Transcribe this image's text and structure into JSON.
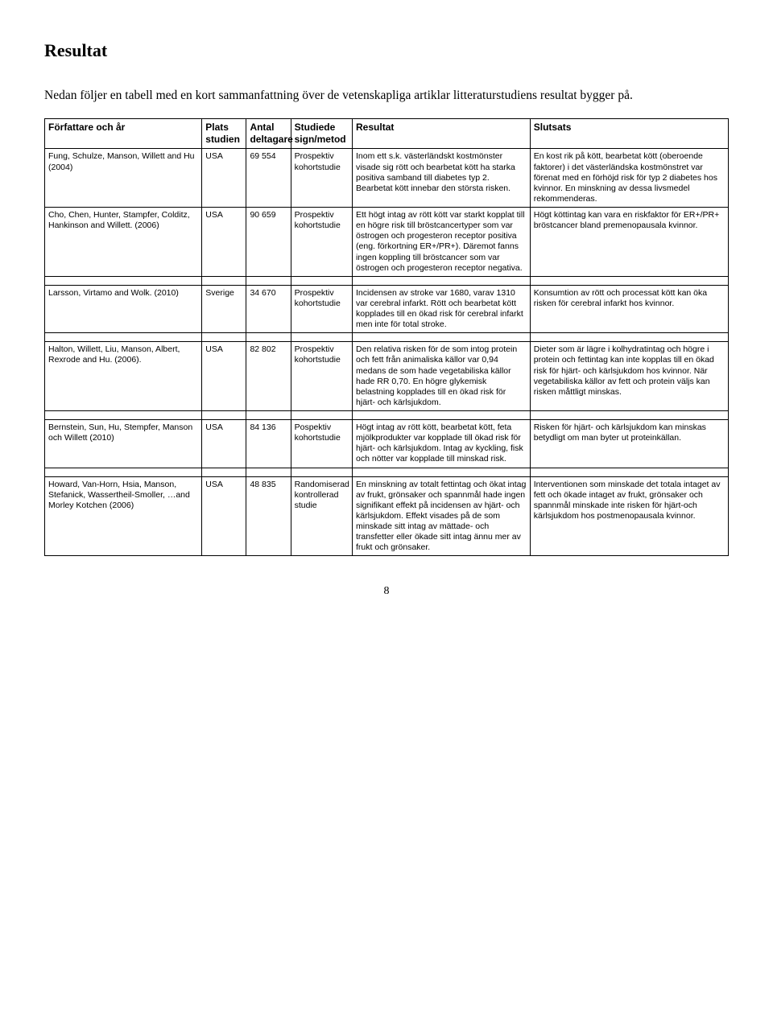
{
  "title": "Resultat",
  "intro": "Nedan följer en tabell med en kort sammanfattning över de vetenskapliga artiklar litteraturstudiens resultat bygger på.",
  "headers": {
    "author": "Författare och år",
    "place": "Plats studien",
    "count": "Antal deltagare",
    "design": "Studiede sign/metod",
    "result": "Resultat",
    "conclusion": "Slutsats"
  },
  "rows": [
    {
      "author": "Fung, Schulze, Manson, Willett and Hu (2004)",
      "place": "USA",
      "count": "69 554",
      "design": "Prospektiv kohortstudie",
      "result": "Inom ett s.k. västerländskt kostmönster visade sig rött och bearbetat kött ha starka positiva samband till diabetes typ 2. Bearbetat kött innebar den största risken.",
      "conclusion": "En kost rik på kött, bearbetat kött (oberoende faktorer) i det västerländska kostmönstret var förenat med en förhöjd risk för typ 2 diabetes hos kvinnor. En minskning av dessa livsmedel rekommenderas."
    },
    {
      "author": "Cho, Chen, Hunter, Stampfer, Colditz, Hankinson and Willett. (2006)",
      "place": "USA",
      "count": "90 659",
      "design": "Prospektiv kohortstudie",
      "result": "Ett högt intag av rött kött var starkt kopplat till en högre risk till bröstcancertyper som var östrogen och progesteron receptor positiva (eng. förkortning ER+/PR+). Däremot fanns ingen koppling till bröstcancer som var östrogen och progesteron receptor negativa.",
      "conclusion": "Högt köttintag kan vara en riskfaktor för ER+/PR+ bröstcancer bland premenopausala kvinnor."
    },
    {
      "author": "Larsson, Virtamo and Wolk. (2010)",
      "place": "Sverige",
      "count": "34 670",
      "design": "Prospektiv kohortstudie",
      "result": "Incidensen av stroke var 1680, varav 1310 var cerebral infarkt. Rött och bearbetat kött kopplades till en ökad risk för cerebral infarkt men inte för total stroke.",
      "conclusion": "Konsumtion av rött och processat kött kan öka risken för cerebral infarkt hos kvinnor."
    },
    {
      "author": "Halton, Willett, Liu, Manson, Albert, Rexrode and Hu. (2006).",
      "place": "USA",
      "count": "82 802",
      "design": "Prospektiv kohortstudie",
      "result": "Den relativa risken för de som intog protein och fett från animaliska källor var 0,94 medans de som hade vegetabiliska källor hade RR 0,70. En högre glykemisk belastning kopplades till en ökad risk för hjärt- och kärlsjukdom.",
      "conclusion": "Dieter som är lägre i kolhydratintag och högre i protein och fettintag kan inte kopplas till en ökad risk för hjärt- och kärlsjukdom hos kvinnor. När vegetabiliska källor av fett och protein väljs kan risken måttligt minskas."
    },
    {
      "author": "Bernstein, Sun, Hu, Stempfer, Manson och Willett (2010)",
      "place": "USA",
      "count": "84 136",
      "design": "Pospektiv kohortstudie",
      "result": "Högt intag av rött kött, bearbetat kött, feta mjölkprodukter var kopplade till ökad risk för hjärt- och kärlsjukdom. Intag av kyckling, fisk och nötter var kopplade till minskad risk.",
      "conclusion": "Risken för hjärt- och kärlsjukdom kan minskas betydligt om man byter ut proteinkällan."
    },
    {
      "author": "Howard, Van-Horn, Hsia, Manson, Stefanick, Wassertheil-Smoller, …and Morley Kotchen (2006)",
      "place": "USA",
      "count": "48 835",
      "design": "Randomiserad kontrollerad studie",
      "result": "En minskning av totalt fettintag och ökat intag av frukt, grönsaker och spannmål hade ingen signifikant effekt på incidensen av hjärt- och kärlsjukdom. Effekt visades på de som minskade sitt intag av mättade- och transfetter eller ökade sitt intag ännu mer av frukt och grönsaker.",
      "conclusion": "Interventionen som minskade det totala intaget av fett och ökade intaget av frukt, grönsaker och spannmål minskade inte risken för hjärt-och kärlsjukdom hos postmenopausala kvinnor."
    }
  ],
  "pageNumber": "8",
  "spacerAfter": [
    2,
    3,
    4,
    5
  ]
}
